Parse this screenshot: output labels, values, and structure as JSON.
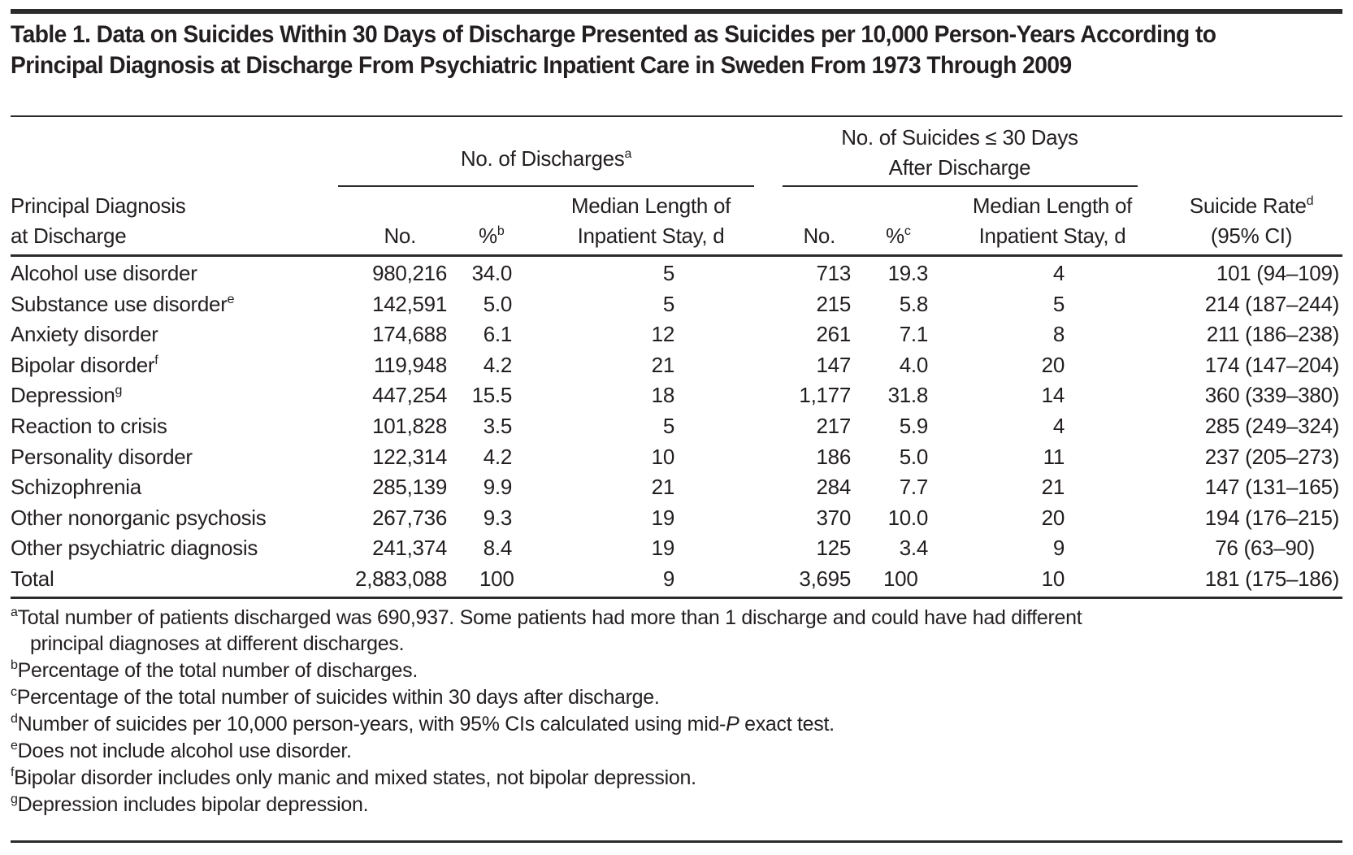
{
  "title": "Table 1. Data on Suicides Within 30 Days of Discharge Presented as Suicides per 10,000 Person-Years According to Principal Diagnosis at Discharge From Psychiatric Inpatient Care in Sweden From 1973 Through 2009",
  "header": {
    "group_discharges": "No. of Discharges",
    "group_discharges_sup": "a",
    "group_suicides_line1": "No. of Suicides ≤ 30 Days",
    "group_suicides_line2": "After Discharge",
    "col_diagnosis_line1": "Principal Diagnosis",
    "col_diagnosis_line2": "at Discharge",
    "col_no": "No.",
    "col_pct": "%",
    "col_pct_sup": "b",
    "col_median_line1": "Median Length of",
    "col_median_line2": "Inpatient Stay, d",
    "col_s_no": "No.",
    "col_s_pct": "%",
    "col_s_pct_sup": "c",
    "col_s_median_line1": "Median Length of",
    "col_s_median_line2": "Inpatient Stay, d",
    "col_rate_line1": "Suicide Rate",
    "col_rate_sup": "d",
    "col_rate_line2": "(95% CI)"
  },
  "rows": [
    {
      "diagnosis": "Alcohol use disorder",
      "sup": "",
      "d_no": "980,216",
      "d_pct": "34.0",
      "d_median": "5",
      "s_no": "713",
      "s_pct": "19.3",
      "s_median": "4",
      "rate": "101 (94–109)"
    },
    {
      "diagnosis": "Substance use disorder",
      "sup": "e",
      "d_no": "142,591",
      "d_pct": "5.0",
      "d_median": "5",
      "s_no": "215",
      "s_pct": "5.8",
      "s_median": "5",
      "rate": "214 (187–244)"
    },
    {
      "diagnosis": "Anxiety disorder",
      "sup": "",
      "d_no": "174,688",
      "d_pct": "6.1",
      "d_median": "12",
      "s_no": "261",
      "s_pct": "7.1",
      "s_median": "8",
      "rate": "211 (186–238)"
    },
    {
      "diagnosis": "Bipolar disorder",
      "sup": "f",
      "d_no": "119,948",
      "d_pct": "4.2",
      "d_median": "21",
      "s_no": "147",
      "s_pct": "4.0",
      "s_median": "20",
      "rate": "174 (147–204)"
    },
    {
      "diagnosis": "Depression",
      "sup": "g",
      "d_no": "447,254",
      "d_pct": "15.5",
      "d_median": "18",
      "s_no": "1,177",
      "s_pct": "31.8",
      "s_median": "14",
      "rate": "360 (339–380)"
    },
    {
      "diagnosis": "Reaction to crisis",
      "sup": "",
      "d_no": "101,828",
      "d_pct": "3.5",
      "d_median": "5",
      "s_no": "217",
      "s_pct": "5.9",
      "s_median": "4",
      "rate": "285 (249–324)"
    },
    {
      "diagnosis": "Personality disorder",
      "sup": "",
      "d_no": "122,314",
      "d_pct": "4.2",
      "d_median": "10",
      "s_no": "186",
      "s_pct": "5.0",
      "s_median": "11",
      "rate": "237 (205–273)"
    },
    {
      "diagnosis": "Schizophrenia",
      "sup": "",
      "d_no": "285,139",
      "d_pct": "9.9",
      "d_median": "21",
      "s_no": "284",
      "s_pct": "7.7",
      "s_median": "21",
      "rate": "147 (131–165)"
    },
    {
      "diagnosis": "Other nonorganic psychosis",
      "sup": "",
      "d_no": "267,736",
      "d_pct": "9.3",
      "d_median": "19",
      "s_no": "370",
      "s_pct": "10.0",
      "s_median": "20",
      "rate": "194 (176–215)"
    },
    {
      "diagnosis": "Other psychiatric diagnosis",
      "sup": "",
      "d_no": "241,374",
      "d_pct": "8.4",
      "d_median": "19",
      "s_no": "125",
      "s_pct": "3.4",
      "s_median": "9",
      "rate": "76 (63–90)"
    },
    {
      "diagnosis": "Total",
      "sup": "",
      "d_no": "2,883,088",
      "d_pct": "100",
      "d_median": "9",
      "s_no": "3,695",
      "s_pct": "100",
      "s_median": "10",
      "rate": "181 (175–186)"
    }
  ],
  "footnotes": [
    {
      "mark": "a",
      "text": "Total number of patients discharged was 690,937. Some patients had more than 1 discharge and could have had different",
      "cont": "principal diagnoses at different discharges."
    },
    {
      "mark": "b",
      "text": "Percentage of the total number of discharges."
    },
    {
      "mark": "c",
      "text": "Percentage of the total number of suicides within 30 days after discharge."
    },
    {
      "mark": "d",
      "text_before": "Number of suicides per 10,000 person-years, with 95% CIs calculated using mid-",
      "text_italic": "P",
      "text_after": " exact test."
    },
    {
      "mark": "e",
      "text": "Does not include alcohol use disorder."
    },
    {
      "mark": "f",
      "text": "Bipolar disorder includes only manic and mixed states, not bipolar depression."
    },
    {
      "mark": "g",
      "text": "Depression includes bipolar depression."
    }
  ]
}
